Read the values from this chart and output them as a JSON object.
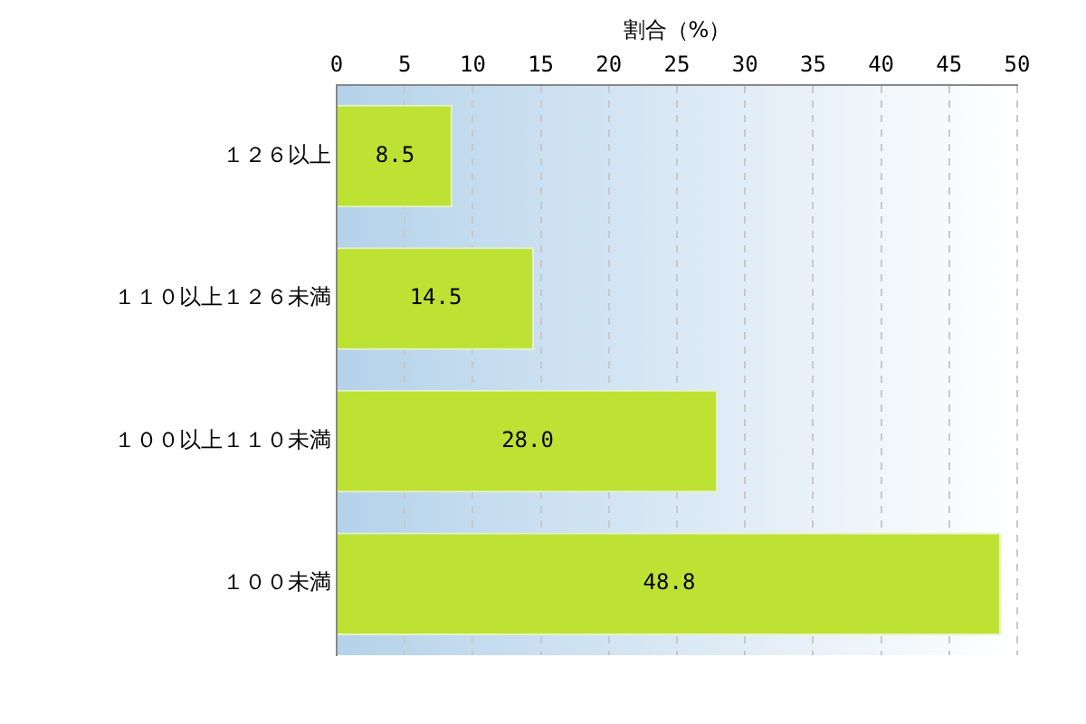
{
  "chart_data": {
    "type": "bar",
    "orientation": "horizontal",
    "xlabel": "割合（%）",
    "categories": [
      "１２６以上",
      "１１０以上１２６未満",
      "１００以上１１０未満",
      "１００未満"
    ],
    "values": [
      8.5,
      14.5,
      28.0,
      48.8
    ],
    "color": "#bde234",
    "xlim": [
      0,
      50
    ],
    "xticks": [
      0,
      5,
      10,
      15,
      20,
      25,
      30,
      35,
      40,
      45,
      50
    ],
    "value_labels": [
      "8.5",
      "14.5",
      "28.0",
      "48.8"
    ],
    "grid": "x",
    "legend": false
  }
}
